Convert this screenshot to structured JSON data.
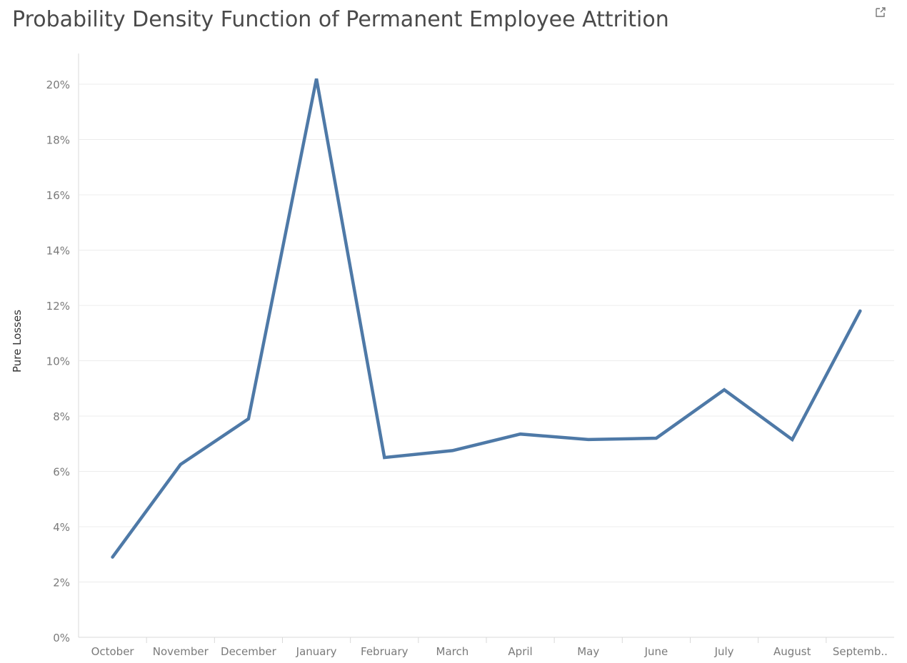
{
  "title": "Probability Density Function of Permanent Employee Attrition",
  "icons": {
    "share": "external-link-icon"
  },
  "chart_data": {
    "type": "line",
    "title": "Probability Density Function of Permanent Employee Attrition",
    "xlabel": "",
    "ylabel": "Pure Losses",
    "categories": [
      "October",
      "November",
      "December",
      "January",
      "February",
      "March",
      "April",
      "May",
      "June",
      "July",
      "August",
      "Septemb.."
    ],
    "values": [
      2.9,
      6.25,
      7.9,
      20.2,
      6.5,
      6.75,
      7.35,
      7.15,
      7.2,
      8.95,
      7.15,
      11.8
    ],
    "ylim": [
      0,
      20
    ],
    "yticks": [
      0,
      2,
      4,
      6,
      8,
      10,
      12,
      14,
      16,
      18,
      20
    ],
    "ytick_labels": [
      "0%",
      "2%",
      "4%",
      "6%",
      "8%",
      "10%",
      "12%",
      "14%",
      "16%",
      "18%",
      "20%"
    ],
    "grid": true,
    "legend": "none",
    "colors": {
      "line": "#4e79a7",
      "grid": "#ececec",
      "axis": "#d9d9d9"
    }
  }
}
